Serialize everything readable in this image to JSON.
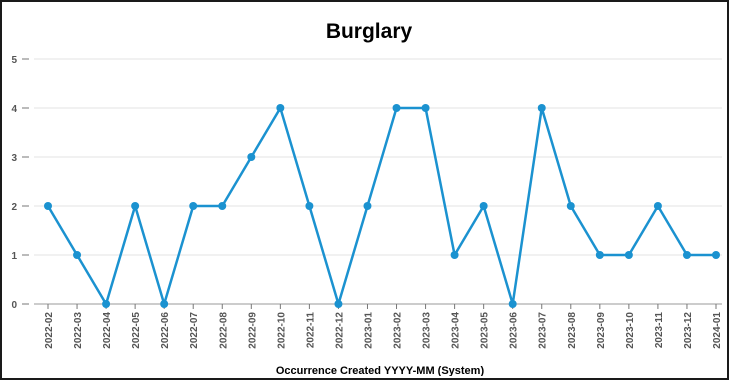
{
  "chart_data": {
    "type": "line",
    "title": "Burglary",
    "xlabel": "Occurrence Created YYYY-MM (System)",
    "ylabel": "",
    "ylim": [
      0,
      5
    ],
    "yticks": [
      "0",
      "1",
      "2",
      "3",
      "4",
      "5"
    ],
    "grid": true,
    "categories": [
      "2022-02",
      "2022-03",
      "2022-04",
      "2022-05",
      "2022-06",
      "2022-07",
      "2022-08",
      "2022-09",
      "2022-10",
      "2022-11",
      "2022-12",
      "2023-01",
      "2023-02",
      "2023-03",
      "2023-04",
      "2023-05",
      "2023-06",
      "2023-07",
      "2023-08",
      "2023-09",
      "2023-10",
      "2023-11",
      "2023-12",
      "2024-01"
    ],
    "series": [
      {
        "values": [
          2,
          1,
          0,
          2,
          0,
          2,
          2,
          3,
          4,
          2,
          0,
          2,
          4,
          4,
          1,
          2,
          0,
          4,
          2,
          1,
          1,
          2,
          1,
          1
        ]
      }
    ],
    "colors": {
      "line": "#1b92d0",
      "grid": "#e3e3e3",
      "axis": "#999999"
    }
  }
}
